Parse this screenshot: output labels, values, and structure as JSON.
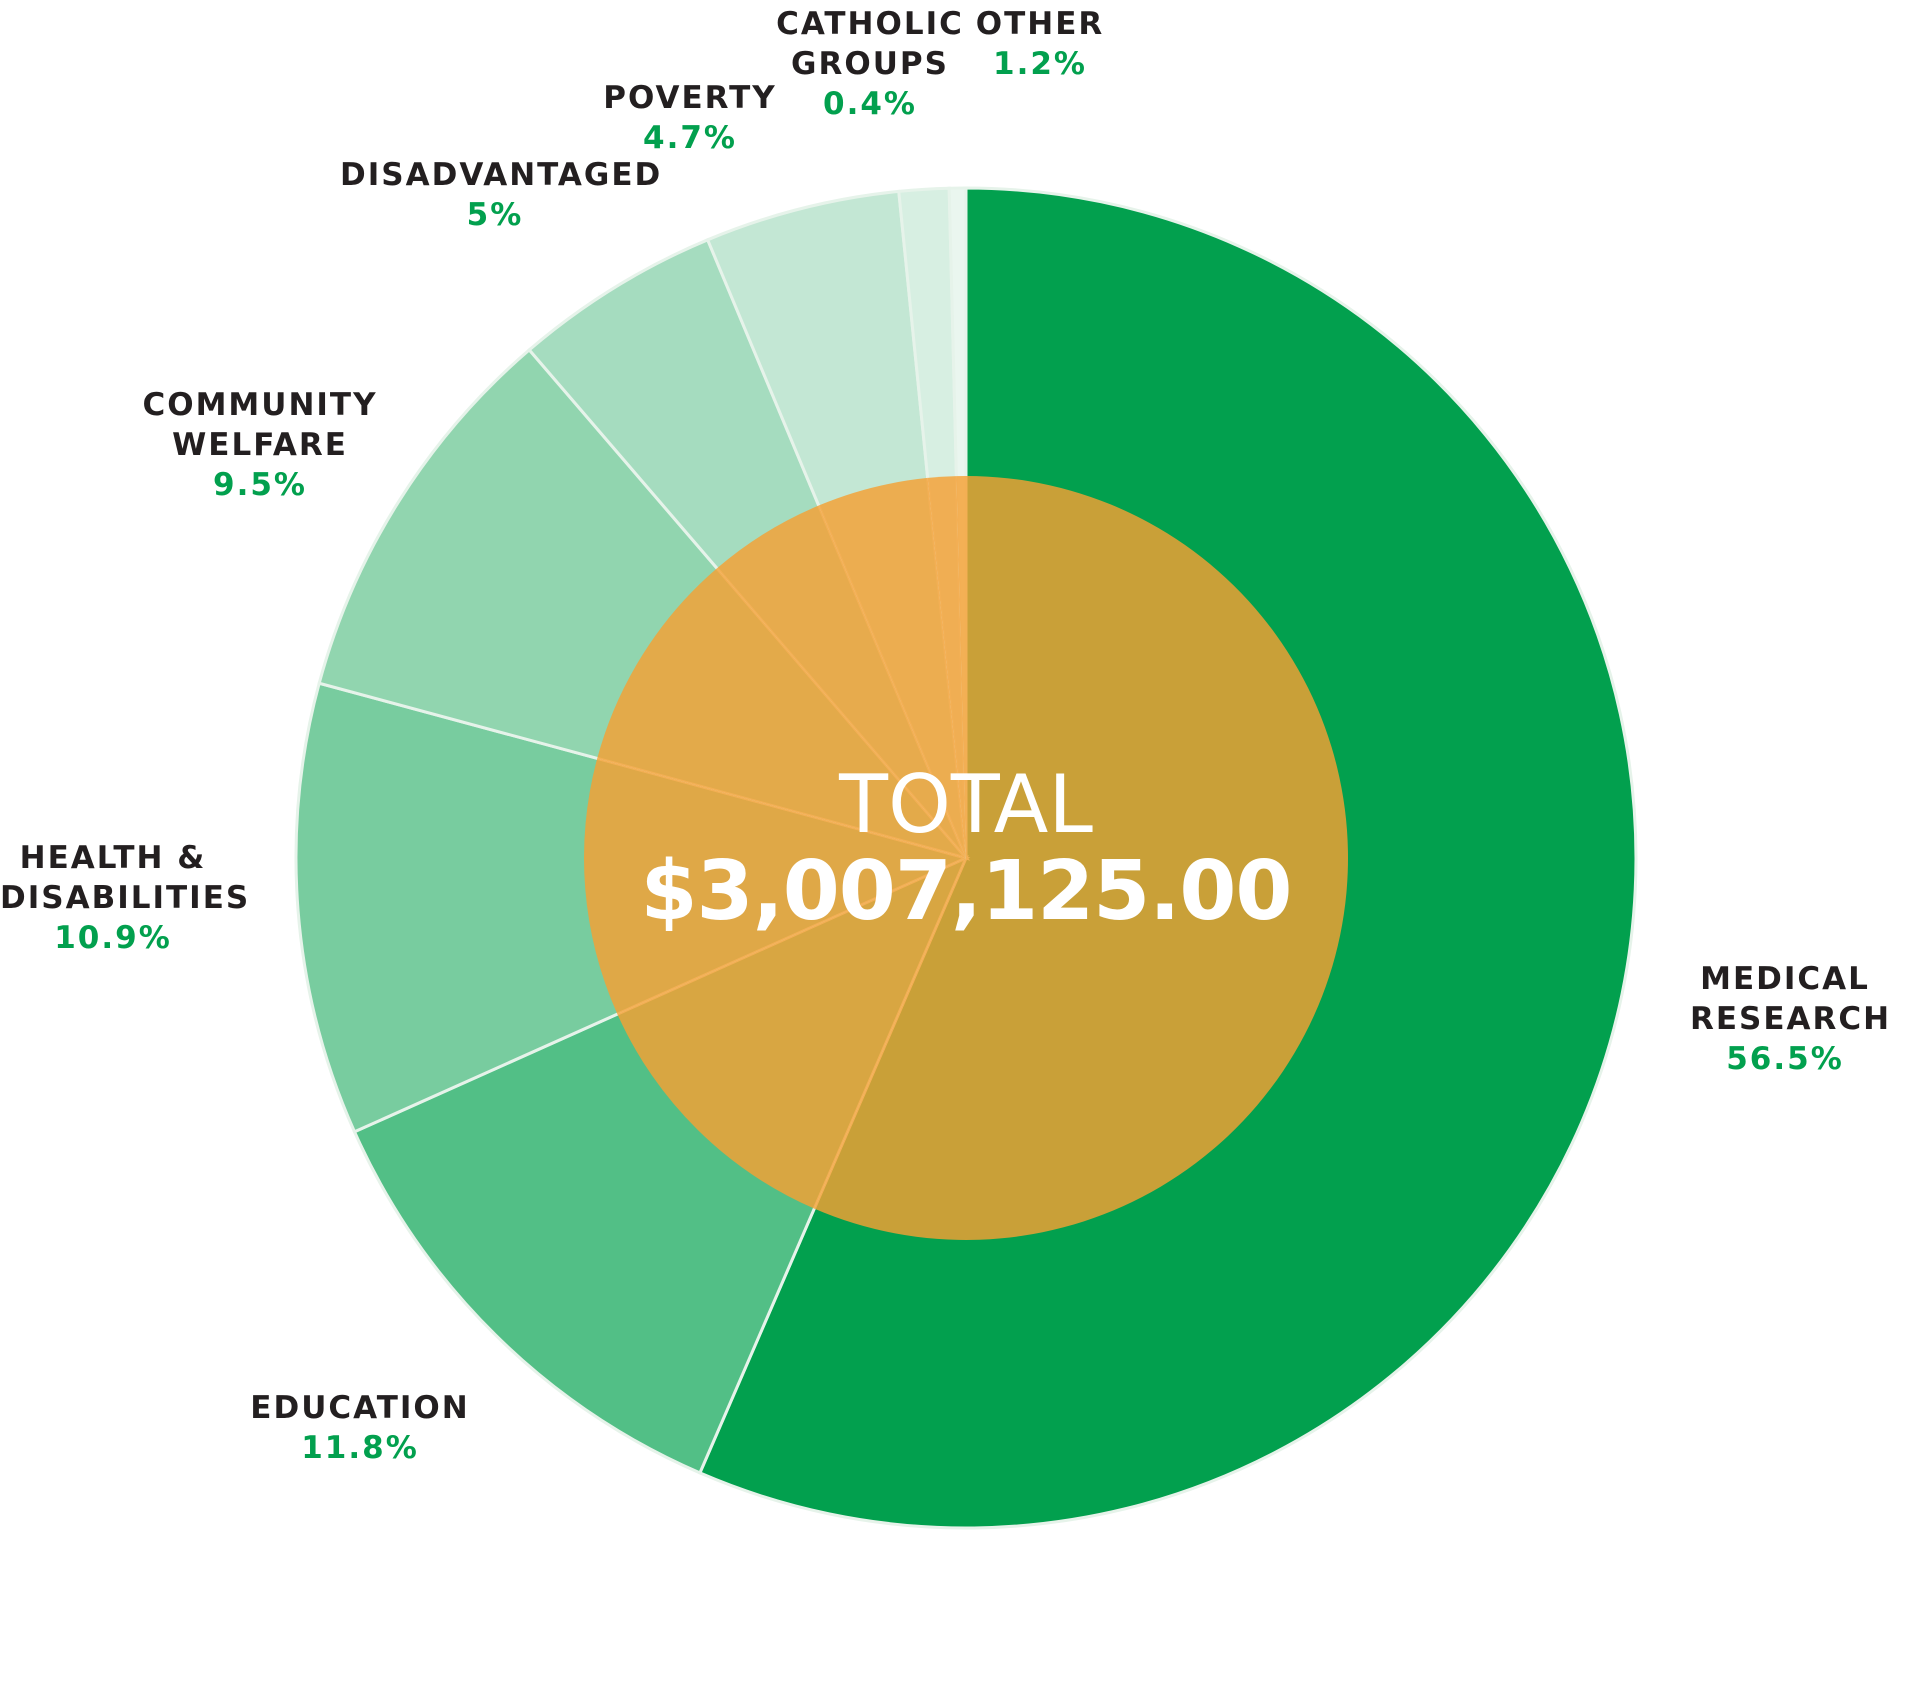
{
  "chart_data": {
    "type": "pie",
    "center": {
      "line1": "TOTAL",
      "line2": "$3,007,125.00"
    },
    "colors": {
      "inner": "#f5a033",
      "separator": "#e6f3ea"
    },
    "slices": [
      {
        "key": "medical",
        "name_lines": [
          "MEDICAL",
          "RESEARCH"
        ],
        "value": 56.5,
        "pct_label": "56.5%",
        "color": "#02a04e"
      },
      {
        "key": "education",
        "name_lines": [
          "EDUCATION"
        ],
        "value": 11.8,
        "pct_label": "11.8%",
        "color": "#52bf86"
      },
      {
        "key": "health",
        "name_lines": [
          "HEALTH &",
          "DISABILITIES"
        ],
        "value": 10.9,
        "pct_label": "10.9%",
        "color": "#78cc9f"
      },
      {
        "key": "community",
        "name_lines": [
          "COMMUNITY",
          "WELFARE"
        ],
        "value": 9.5,
        "pct_label": "9.5%",
        "color": "#91d5af"
      },
      {
        "key": "disadvantaged",
        "name_lines": [
          "DISADVANTAGED"
        ],
        "value": 5,
        "pct_label": "5%",
        "color": "#a5dcbf"
      },
      {
        "key": "poverty",
        "name_lines": [
          "POVERTY"
        ],
        "value": 4.7,
        "pct_label": "4.7%",
        "color": "#c3e7d4"
      },
      {
        "key": "other",
        "name_lines": [
          "OTHER"
        ],
        "value": 1.2,
        "pct_label": "1.2%",
        "color": "#d7efe2"
      },
      {
        "key": "catholic",
        "name_lines": [
          "CATHOLIC",
          "GROUPS"
        ],
        "value": 0.4,
        "pct_label": "0.4%",
        "color": "#eaf6ef"
      }
    ]
  }
}
